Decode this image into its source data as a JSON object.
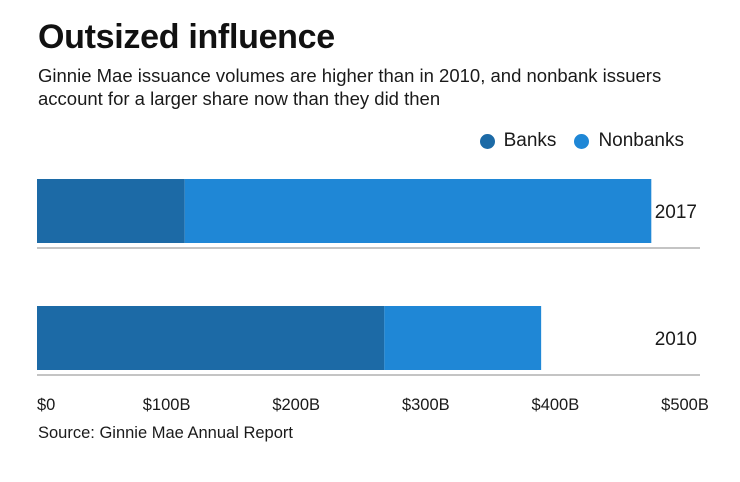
{
  "title": "Outsized influence",
  "subtitle": "Ginnie Mae issuance volumes are higher than in 2010, and nonbank issuers account for a larger share now than they did then",
  "source": "Source: Ginnie Mae Annual Report",
  "colors": {
    "banks": "#1c6aa6",
    "nonbanks": "#1f87d6",
    "axis": "#888888"
  },
  "legend": [
    {
      "label": "Banks",
      "color": "#1c6aa6"
    },
    {
      "label": "Nonbanks",
      "color": "#1f87d6"
    }
  ],
  "chart_data": {
    "type": "bar",
    "orientation": "horizontal",
    "stacked": true,
    "categories": [
      "2017",
      "2010"
    ],
    "series": [
      {
        "name": "Banks",
        "values": [
          114,
          268
        ]
      },
      {
        "name": "Nonbanks",
        "values": [
          360,
          121
        ]
      }
    ],
    "xlim": [
      0,
      500
    ],
    "xticks": [
      0,
      100,
      200,
      300,
      400,
      500
    ],
    "xtick_labels": [
      "$0",
      "$100B",
      "$200B",
      "$300B",
      "$400B",
      "$500B"
    ],
    "title": "Outsized influence",
    "xlabel": "",
    "ylabel": "",
    "legend_position": "top-right"
  }
}
